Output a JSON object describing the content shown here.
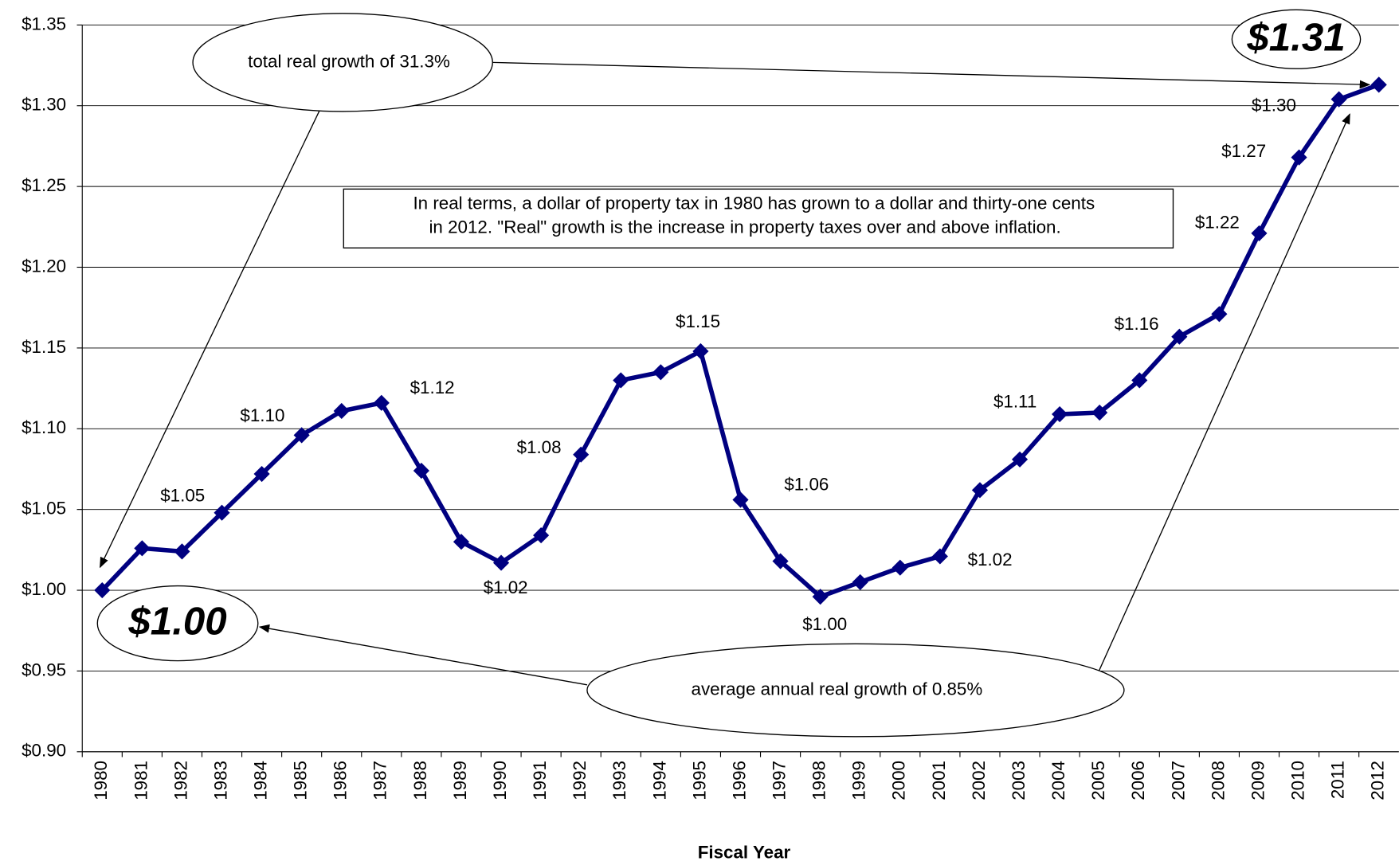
{
  "chart_data": {
    "type": "line",
    "x_label": "Fiscal Year",
    "categories": [
      "1980",
      "1981",
      "1982",
      "1983",
      "1984",
      "1985",
      "1986",
      "1987",
      "1988",
      "1989",
      "1990",
      "1991",
      "1992",
      "1993",
      "1994",
      "1995",
      "1996",
      "1997",
      "1998",
      "1999",
      "2000",
      "2001",
      "2002",
      "2003",
      "2004",
      "2005",
      "2006",
      "2007",
      "2008",
      "2009",
      "2010",
      "2011",
      "2012"
    ],
    "series": [
      {
        "color": "#000080",
        "values": [
          1.0,
          1.026,
          1.024,
          1.048,
          1.072,
          1.096,
          1.111,
          1.116,
          1.074,
          1.03,
          1.017,
          1.034,
          1.084,
          1.13,
          1.135,
          1.148,
          1.056,
          1.018,
          0.996,
          1.005,
          1.014,
          1.021,
          1.062,
          1.081,
          1.109,
          1.11,
          1.13,
          1.157,
          1.171,
          1.221,
          1.268,
          1.304,
          1.313
        ],
        "value_labels": [
          "$1.00",
          null,
          null,
          "$1.05",
          null,
          "$1.10",
          null,
          "$1.12",
          null,
          null,
          "$1.02",
          null,
          "$1.08",
          null,
          null,
          "$1.15",
          "$1.06",
          null,
          "$1.00",
          null,
          null,
          "$1.02",
          null,
          null,
          "$1.11",
          null,
          null,
          "$1.16",
          null,
          "$1.22",
          "$1.27",
          "$1.30",
          "$1.31"
        ]
      }
    ],
    "ylim": [
      0.9,
      1.35
    ],
    "yticks": [
      {
        "value": 0.9,
        "label": "$0.90"
      },
      {
        "value": 0.95,
        "label": "$0.95"
      },
      {
        "value": 1.0,
        "label": "$1.00"
      },
      {
        "value": 1.05,
        "label": "$1.05"
      },
      {
        "value": 1.1,
        "label": "$1.10"
      },
      {
        "value": 1.15,
        "label": "$1.15"
      },
      {
        "value": 1.2,
        "label": "$1.20"
      },
      {
        "value": 1.25,
        "label": "$1.25"
      },
      {
        "value": 1.3,
        "label": "$1.30"
      },
      {
        "value": 1.35,
        "label": "$1.35"
      }
    ],
    "grid": true,
    "annotations": [
      "total real growth of 31.3%",
      "average annual real growth of 0.85%",
      "In real terms, a dollar of property tax in 1980 has grown to a dollar and thirty-one cents",
      "in 2012. \"Real\" growth is the increase in property taxes over and above inflation."
    ]
  }
}
